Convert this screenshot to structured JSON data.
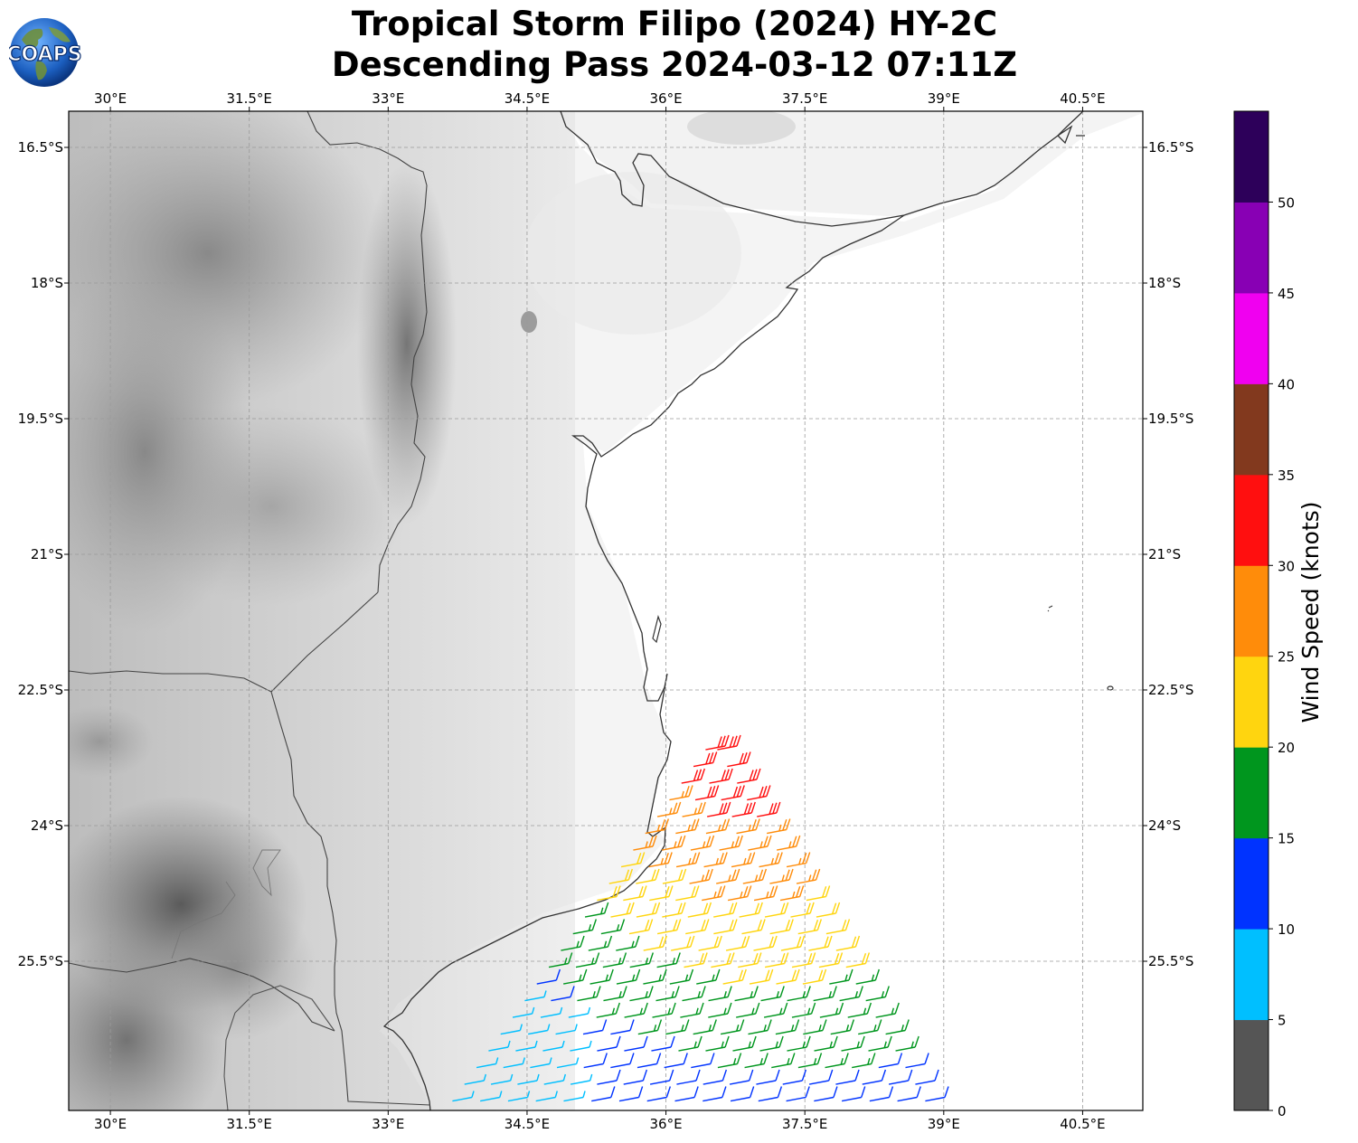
{
  "title": {
    "line1": "Tropical Storm Filipo (2024) HY-2C",
    "line2": "Descending Pass 2024-03-12 07:11Z"
  },
  "logo": {
    "text": "COAPS",
    "icon": "globe-logo-icon"
  },
  "map": {
    "lon_range": [
      29.55,
      41.15
    ],
    "lat_range": [
      -27.15,
      -16.1
    ],
    "lon_ticks": [
      "30°E",
      "31.5°E",
      "33°E",
      "34.5°E",
      "36°E",
      "37.5°E",
      "39°E",
      "40.5°E"
    ],
    "lat_ticks": [
      "16.5°S",
      "18°S",
      "19.5°S",
      "21°S",
      "22.5°S",
      "24°S",
      "25.5°S"
    ],
    "grid": true,
    "basemap": "grayscale topography",
    "wind_barbs": "HY-2C scatterometer wind barbs, colored by speed"
  },
  "colorbar": {
    "label": "Wind Speed (knots)",
    "ticks": [
      "0",
      "5",
      "10",
      "15",
      "20",
      "25",
      "30",
      "35",
      "40",
      "45",
      "50"
    ],
    "colors": [
      "#555555",
      "#00bfff",
      "#0033ff",
      "#00961e",
      "#ffd50f",
      "#ff8c0a",
      "#ff0f0f",
      "#82391e",
      "#f000f0",
      "#8800b4",
      "#2d005a"
    ]
  }
}
